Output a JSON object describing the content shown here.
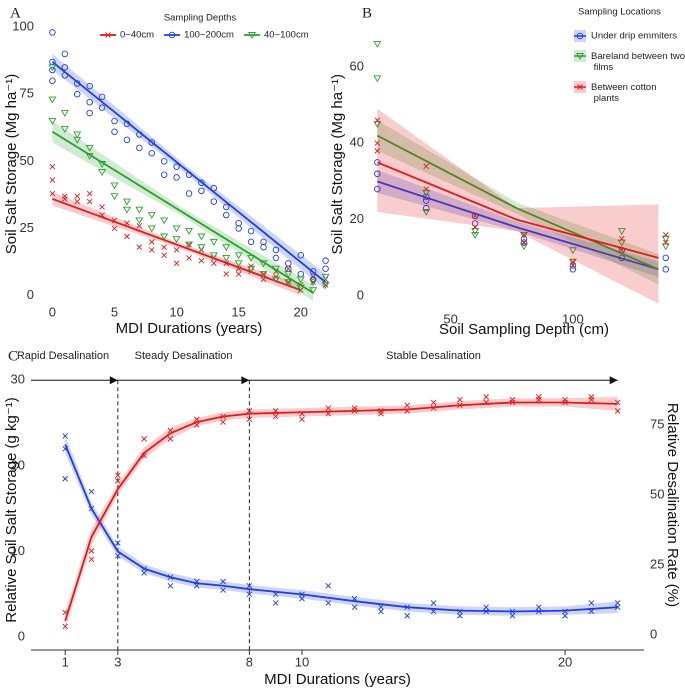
{
  "chart_data": [
    {
      "type": "scatter",
      "panel_label": "A",
      "x_label": "MDI Durations (years)",
      "y_label": "Soil Salt Storage (Mg ha⁻¹)",
      "xlim": [
        -1,
        23
      ],
      "ylim": [
        -5,
        103
      ],
      "xticks": [
        0,
        5,
        10,
        15,
        20
      ],
      "yticks": [
        0,
        25,
        50,
        75,
        100
      ],
      "legend_title": "Sampling Depths",
      "legend_position": "top",
      "series": [
        {
          "name": "0~40cm",
          "color": "#e31a1c",
          "marker": "x",
          "x": [
            0,
            0,
            0,
            1,
            1,
            2,
            2,
            3,
            3,
            4,
            4,
            5,
            5,
            6,
            6,
            7,
            7,
            8,
            8,
            9,
            9,
            10,
            10,
            11,
            11,
            12,
            12,
            13,
            13,
            14,
            14,
            15,
            15,
            16,
            16,
            17,
            17,
            18,
            18,
            19,
            19,
            20,
            20,
            21,
            21,
            22,
            22
          ],
          "values": [
            38,
            43,
            48,
            37,
            36,
            37,
            35,
            35,
            38,
            33,
            30,
            28,
            25,
            27,
            22,
            26,
            18,
            20,
            17,
            18,
            15,
            17,
            12,
            19,
            14,
            17,
            13,
            14,
            12,
            12,
            8,
            10,
            8,
            9,
            11,
            8,
            6,
            7,
            9,
            5,
            10,
            4,
            2,
            5,
            7,
            4,
            6
          ],
          "fit_x": [
            0,
            10,
            20
          ],
          "fit": [
            36,
            19,
            2
          ],
          "fit_lower": [
            33.5,
            18,
            0
          ],
          "fit_upper": [
            38.5,
            20,
            4
          ]
        },
        {
          "name": "100~200cm",
          "color": "#1f3fe0",
          "marker": "circle",
          "x": [
            0,
            0,
            0,
            0,
            1,
            1,
            1,
            2,
            2,
            3,
            3,
            3,
            4,
            4,
            5,
            5,
            6,
            6,
            7,
            7,
            8,
            8,
            9,
            9,
            10,
            10,
            11,
            11,
            12,
            12,
            13,
            13,
            14,
            14,
            15,
            15,
            16,
            16,
            17,
            17,
            18,
            18,
            19,
            19,
            20,
            20,
            21,
            21,
            22,
            22
          ],
          "values": [
            98,
            87,
            84,
            80,
            90,
            82,
            85,
            79,
            75,
            78,
            72,
            68,
            74,
            70,
            65,
            61,
            64,
            58,
            60,
            55,
            57,
            53,
            50,
            45,
            48,
            44,
            45,
            38,
            42,
            39,
            40,
            35,
            33,
            30,
            27,
            25,
            24,
            20,
            20,
            18,
            14,
            17,
            12,
            10,
            15,
            8,
            9,
            6,
            13,
            10
          ],
          "fit_x": [
            0,
            11,
            22
          ],
          "fit": [
            87,
            46,
            5
          ],
          "fit_lower": [
            84,
            44.5,
            2
          ],
          "fit_upper": [
            90,
            47.5,
            8
          ]
        },
        {
          "name": "40~100cm",
          "color": "#2ca02c",
          "marker": "triangle",
          "x": [
            0,
            0,
            0,
            1,
            1,
            2,
            2,
            3,
            3,
            4,
            4,
            5,
            5,
            6,
            6,
            7,
            7,
            8,
            8,
            9,
            9,
            10,
            10,
            11,
            11,
            12,
            12,
            13,
            13,
            14,
            14,
            15,
            15,
            16,
            16,
            17,
            17,
            18,
            18,
            19,
            19,
            20,
            20,
            21,
            21,
            22,
            22
          ],
          "values": [
            85,
            73,
            65,
            68,
            62,
            60,
            58,
            55,
            52,
            49,
            46,
            41,
            37,
            35,
            32,
            32,
            28,
            30,
            25,
            28,
            22,
            25,
            21,
            24,
            19,
            22,
            18,
            20,
            15,
            18,
            14,
            15,
            12,
            14,
            10,
            12,
            8,
            10,
            6,
            8,
            5,
            6,
            3,
            5,
            2,
            7,
            4
          ],
          "fit_x": [
            0,
            10.5,
            21
          ],
          "fit": [
            61,
            31,
            1
          ],
          "fit_lower": [
            57,
            29.5,
            -2
          ],
          "fit_upper": [
            65,
            32.5,
            4
          ]
        }
      ]
    },
    {
      "type": "scatter",
      "panel_label": "B",
      "x_label": "Soil Sampling Depth (cm)",
      "y_label": "Soil Salt Storage (Mg ha⁻¹)",
      "xlim": [
        17,
        143
      ],
      "ylim": [
        -3,
        72
      ],
      "xticks": [
        50,
        100
      ],
      "yticks": [
        0,
        20,
        40,
        60
      ],
      "legend_title": "Sampling Locations",
      "legend_position": "top-right",
      "series": [
        {
          "name": "Under drip emmiters",
          "color": "#1f3fe0",
          "marker": "circle",
          "x": [
            20,
            20,
            20,
            40,
            40,
            40,
            60,
            60,
            80,
            80,
            100,
            100,
            120,
            120,
            138,
            138
          ],
          "values": [
            28,
            35,
            32,
            25,
            23,
            26,
            21,
            19,
            15,
            14,
            8,
            7,
            12,
            10,
            7,
            10
          ],
          "fit_x": [
            20,
            77,
            135
          ],
          "fit": [
            30,
            18,
            7
          ],
          "fit_lower": [
            27,
            17,
            5
          ],
          "fit_upper": [
            33,
            19.5,
            9
          ]
        },
        {
          "name": "Bareland between two films",
          "color": "#2ca02c",
          "marker": "triangle",
          "x": [
            20,
            20,
            20,
            40,
            40,
            60,
            60,
            80,
            80,
            100,
            100,
            120,
            120,
            138,
            138
          ],
          "values": [
            66,
            57,
            45,
            27,
            22,
            17,
            16,
            16,
            13,
            12,
            9,
            17,
            14,
            15,
            13
          ],
          "fit_x": [
            20,
            77,
            135
          ],
          "fit": [
            42,
            23,
            7
          ],
          "fit_lower": [
            38,
            21.5,
            3
          ],
          "fit_upper": [
            46,
            24.5,
            11
          ]
        },
        {
          "name": "Between cotton plants",
          "color": "#e31a1c",
          "marker": "x",
          "x": [
            20,
            20,
            20,
            40,
            40,
            60,
            60,
            80,
            80,
            100,
            100,
            120,
            120,
            138,
            138
          ],
          "values": [
            46,
            40,
            38,
            34,
            28,
            21,
            18,
            16,
            14,
            9,
            8,
            15,
            12,
            14,
            16
          ],
          "fit_x": [
            20,
            77,
            135
          ],
          "fit": [
            35,
            20,
            10
          ],
          "fit_lower": [
            22,
            17,
            -2
          ],
          "fit_upper": [
            49,
            23,
            24
          ]
        }
      ]
    },
    {
      "type": "scatter",
      "panel_label": "C",
      "x_label": "MDI Durations (years)",
      "y_label": "Relative Soil Salt Storage (g kg⁻¹)",
      "y2_label": "Relative Desalination Rate (%)",
      "xlim": [
        -0.3,
        23
      ],
      "ylim": [
        -1.5,
        31.2
      ],
      "y2lim": [
        -5.4,
        94.6
      ],
      "xticks": [
        1,
        3,
        8,
        10,
        20
      ],
      "yticks": [
        0,
        10,
        20,
        30
      ],
      "y2ticks": [
        0,
        25,
        50,
        75
      ],
      "x_axis_line": true,
      "dividers": [
        3,
        8
      ],
      "annotations": [
        "Rapid Desalination",
        "Steady Desalination",
        "Stable Desalination"
      ],
      "series": [
        {
          "color": "#1f3fe0",
          "marker": "x",
          "x": [
            1,
            1,
            1,
            2,
            2,
            3,
            3,
            4,
            4,
            5,
            5,
            6,
            6,
            7,
            7,
            8,
            8,
            9,
            9,
            10,
            10,
            11,
            11,
            12,
            12,
            13,
            13,
            14,
            14,
            15,
            15,
            16,
            16,
            17,
            17,
            18,
            18,
            19,
            19,
            20,
            20,
            21,
            21,
            22,
            22
          ],
          "values": [
            23.5,
            22,
            18.5,
            17,
            15,
            11,
            9.5,
            8,
            7.5,
            7,
            6,
            6.5,
            6,
            6.5,
            5.5,
            6,
            5,
            5,
            4,
            5,
            4.5,
            6,
            4,
            4.5,
            3.5,
            3.5,
            3,
            3.5,
            2.5,
            4,
            3,
            3,
            2.5,
            3.5,
            3,
            3,
            2.5,
            3.5,
            3,
            3,
            2.5,
            4,
            3,
            4,
            3.5
          ],
          "fit_x": [
            1,
            2,
            3,
            4,
            5,
            6,
            7,
            8,
            10,
            12,
            14,
            16,
            18,
            20,
            22
          ],
          "fit": [
            22.5,
            15,
            10,
            8,
            7,
            6.3,
            6,
            5.6,
            5,
            4.2,
            3.5,
            3.1,
            3,
            3.1,
            3.5
          ],
          "fit_lower": [
            21.5,
            14.3,
            9.4,
            7.5,
            6.5,
            5.8,
            5.5,
            5.1,
            4.5,
            3.7,
            3,
            2.6,
            2.5,
            2.6,
            2.8
          ],
          "fit_upper": [
            23.5,
            15.7,
            10.6,
            8.5,
            7.5,
            6.8,
            6.5,
            6.1,
            5.5,
            4.7,
            4,
            3.6,
            3.5,
            3.6,
            4.2
          ]
        },
        {
          "color": "#e31a1c",
          "marker": "x",
          "axis": "y2",
          "x": [
            1,
            1,
            2,
            2,
            3,
            3,
            4,
            4,
            5,
            5,
            6,
            6,
            7,
            7,
            8,
            8,
            9,
            9,
            10,
            10,
            11,
            11,
            12,
            12,
            13,
            13,
            14,
            14,
            15,
            15,
            16,
            16,
            17,
            17,
            18,
            18,
            19,
            19,
            20,
            20,
            21,
            21,
            22,
            22
          ],
          "values": [
            8,
            3,
            30,
            27,
            57,
            55,
            70,
            64,
            73,
            70,
            77,
            75,
            78,
            76,
            80,
            77,
            80,
            78,
            79,
            77,
            81,
            79,
            81,
            80,
            80,
            79,
            82,
            80,
            83,
            81,
            84,
            82,
            85,
            83,
            84,
            83,
            85,
            84,
            84,
            83,
            85,
            84,
            83,
            80
          ],
          "fit_x": [
            1,
            2,
            3,
            4,
            5,
            6,
            7,
            8,
            10,
            12,
            14,
            16,
            18,
            20,
            22
          ],
          "fit": [
            5,
            35,
            52,
            65,
            72,
            76,
            78,
            79,
            79.5,
            80,
            80.5,
            82,
            83,
            83,
            82.5
          ],
          "fit_lower": [
            2,
            32,
            50,
            63,
            70,
            74.5,
            76.5,
            77.5,
            78,
            78.5,
            79,
            80.5,
            81.5,
            81.5,
            80
          ],
          "fit_upper": [
            8,
            38,
            54,
            67,
            74,
            77.5,
            79.5,
            80.5,
            81,
            81.5,
            82,
            83.5,
            84.5,
            84.5,
            85
          ]
        }
      ]
    }
  ]
}
